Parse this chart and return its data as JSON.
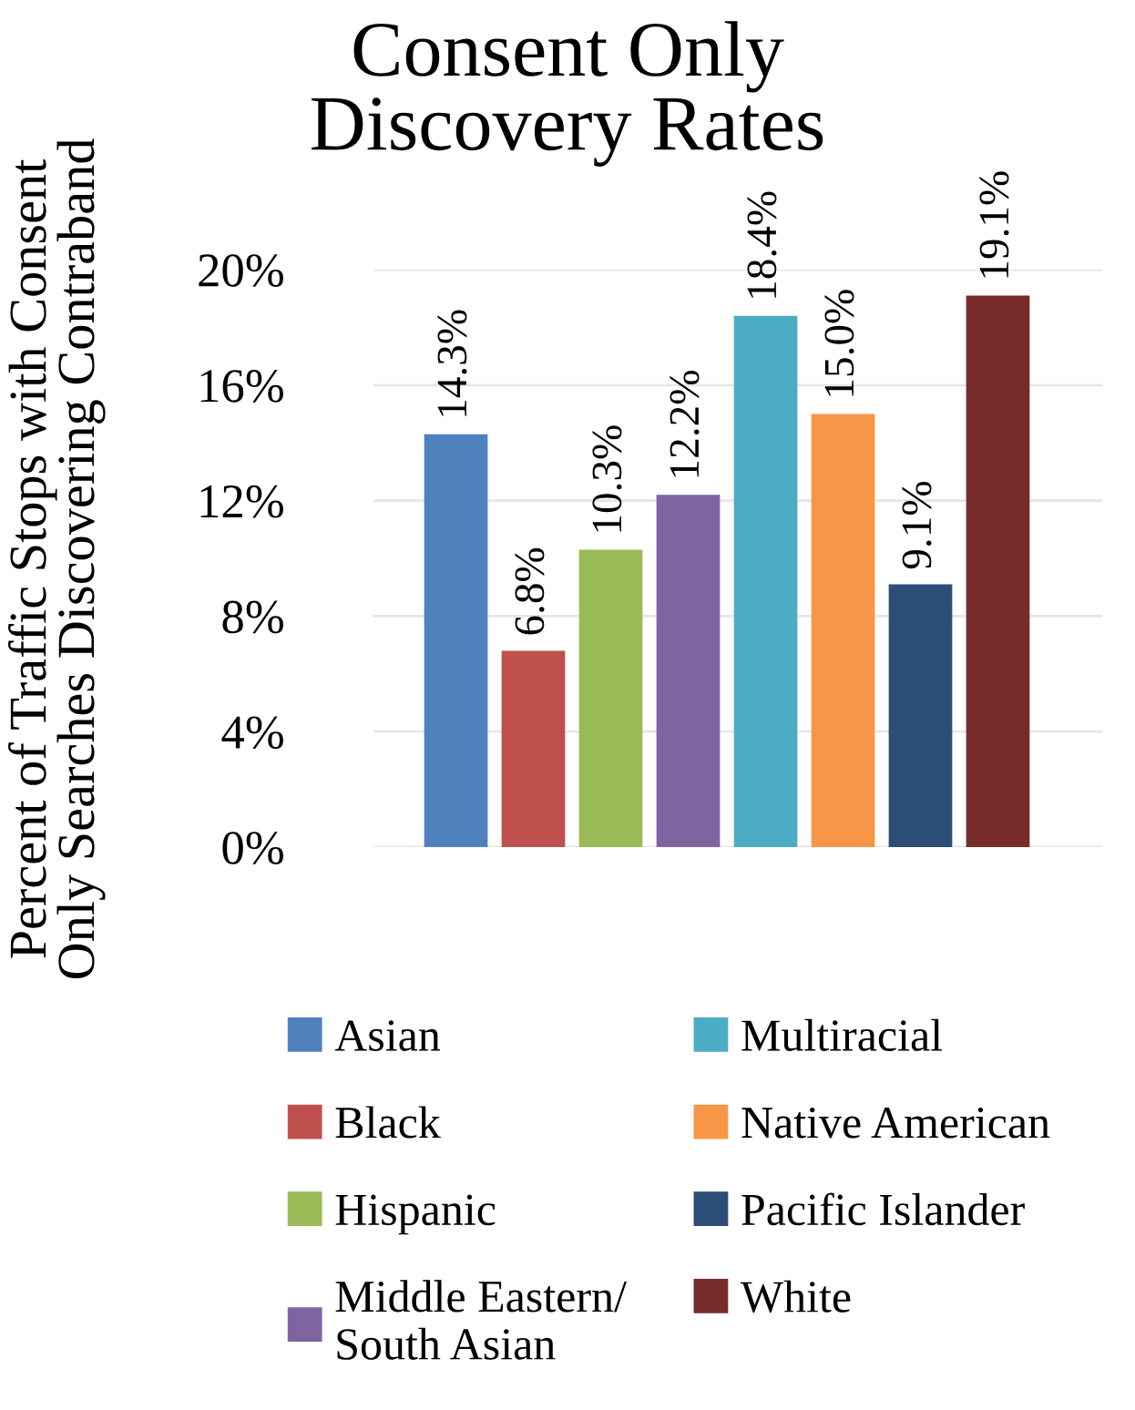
{
  "chart_data": {
    "type": "bar",
    "title": "Consent Only Discovery Rates",
    "ylabel": "Percent of Traffic Stops with Consent Only Searches Discovering Contraband",
    "categories": [
      null
    ],
    "series": [
      {
        "name": "Asian",
        "color": "#4f81bd",
        "values": [
          14.3
        ],
        "value_labels": [
          "14.3%"
        ]
      },
      {
        "name": "Black",
        "color": "#c0504d",
        "values": [
          6.8
        ],
        "value_labels": [
          "6.8%"
        ]
      },
      {
        "name": "Hispanic",
        "color": "#9bbb59",
        "values": [
          10.3
        ],
        "value_labels": [
          "10.3%"
        ]
      },
      {
        "name": "Middle Eastern/ South Asian",
        "color": "#8064a2",
        "values": [
          12.2
        ],
        "value_labels": [
          "12.2%"
        ]
      },
      {
        "name": "Multiracial",
        "color": "#4bacc6",
        "values": [
          18.4
        ],
        "value_labels": [
          "18.4%"
        ]
      },
      {
        "name": "Native American",
        "color": "#f79646",
        "values": [
          15.0
        ],
        "value_labels": [
          "15.0%"
        ]
      },
      {
        "name": "Pacific Islander",
        "color": "#2c4d75",
        "values": [
          9.1
        ],
        "value_labels": [
          "9.1%"
        ]
      },
      {
        "name": "White",
        "color": "#772c2a",
        "values": [
          19.1
        ],
        "value_labels": [
          "19.1%"
        ]
      }
    ],
    "ylim": [
      0,
      20
    ],
    "yticks": [
      {
        "value": 0,
        "label": "0%"
      },
      {
        "value": 4,
        "label": "4%"
      },
      {
        "value": 8,
        "label": "8%"
      },
      {
        "value": 12,
        "label": "12%"
      },
      {
        "value": 16,
        "label": "16%"
      },
      {
        "value": 20,
        "label": "20%"
      }
    ],
    "grid": "y",
    "legend": "bottom",
    "tick_labels": "y"
  }
}
